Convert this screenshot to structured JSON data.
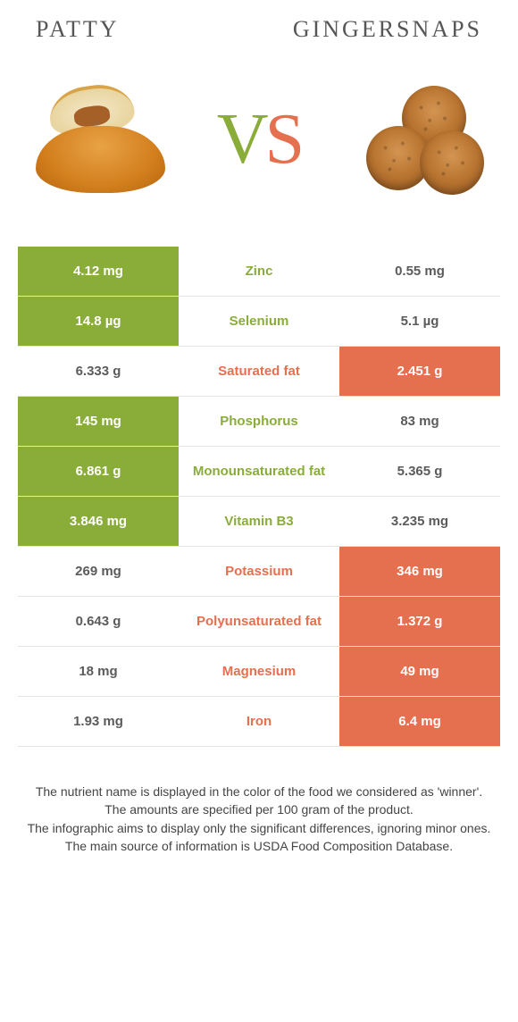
{
  "colors": {
    "left": "#8aad3a",
    "right": "#e4704f",
    "text": "#565656",
    "row_border": "#e4e4e4"
  },
  "header": {
    "left_title": "Patty",
    "right_title": "Gingersnaps",
    "vs_v": "V",
    "vs_s": "S"
  },
  "rows": [
    {
      "nutrient": "Zinc",
      "left": "4.12 mg",
      "right": "0.55 mg",
      "winner": "left"
    },
    {
      "nutrient": "Selenium",
      "left": "14.8 µg",
      "right": "5.1 µg",
      "winner": "left"
    },
    {
      "nutrient": "Saturated fat",
      "left": "6.333 g",
      "right": "2.451 g",
      "winner": "right"
    },
    {
      "nutrient": "Phosphorus",
      "left": "145 mg",
      "right": "83 mg",
      "winner": "left"
    },
    {
      "nutrient": "Monounsaturated fat",
      "left": "6.861 g",
      "right": "5.365 g",
      "winner": "left"
    },
    {
      "nutrient": "Vitamin B3",
      "left": "3.846 mg",
      "right": "3.235 mg",
      "winner": "left"
    },
    {
      "nutrient": "Potassium",
      "left": "269 mg",
      "right": "346 mg",
      "winner": "right"
    },
    {
      "nutrient": "Polyunsaturated fat",
      "left": "0.643 g",
      "right": "1.372 g",
      "winner": "right"
    },
    {
      "nutrient": "Magnesium",
      "left": "18 mg",
      "right": "49 mg",
      "winner": "right"
    },
    {
      "nutrient": "Iron",
      "left": "1.93 mg",
      "right": "6.4 mg",
      "winner": "right"
    }
  ],
  "footer": {
    "l1": "The nutrient name is displayed in the color of the food we considered as 'winner'.",
    "l2": "The amounts are specified per 100 gram of the product.",
    "l3": "The infographic aims to display only the significant differences, ignoring minor ones.",
    "l4": "The main source of information is USDA Food Composition Database."
  }
}
